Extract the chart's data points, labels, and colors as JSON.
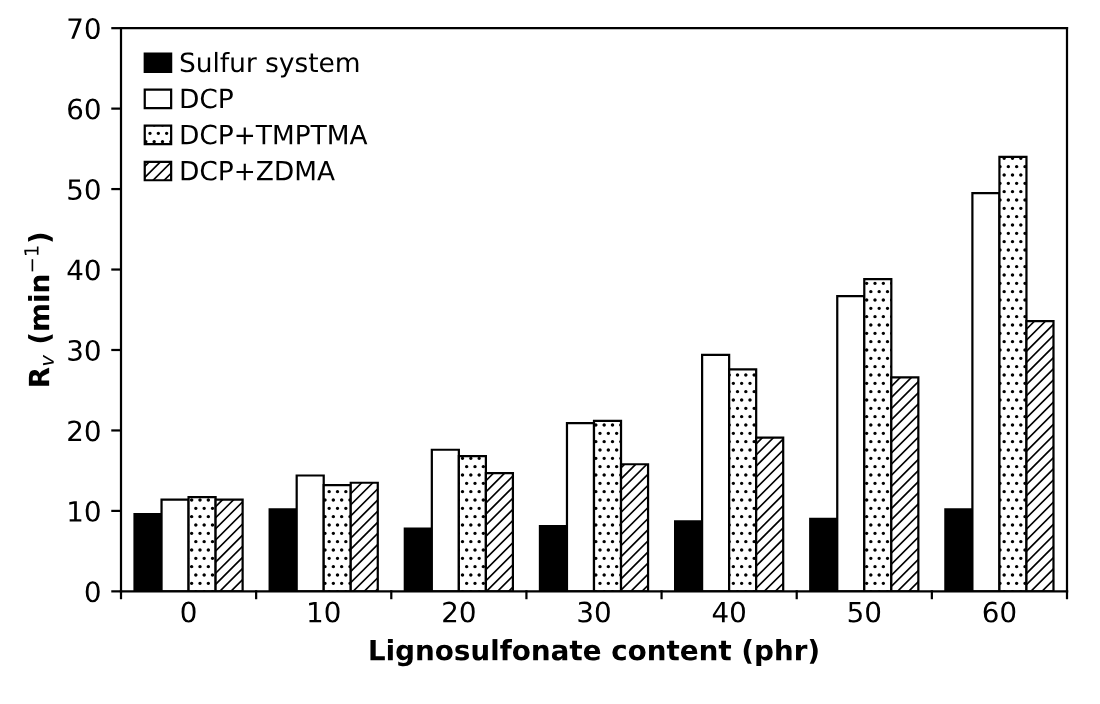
{
  "chart_data": {
    "type": "bar",
    "xlabel": "Lignosulfonate content (phr)",
    "ylabel": "R$_{v}$ (min$^{−1}$)",
    "categories": [
      "0",
      "10",
      "20",
      "30",
      "40",
      "50",
      "60"
    ],
    "series": [
      {
        "name": "Sulfur system",
        "color": "#000000",
        "values": [
          9.6,
          10.2,
          7.8,
          8.1,
          8.7,
          9.0,
          10.2
        ]
      },
      {
        "name": "DCP",
        "color": "#ffffff",
        "values": [
          11.4,
          14.4,
          17.6,
          20.9,
          29.4,
          36.7,
          49.5
        ]
      },
      {
        "name": "DCP+TMPTMA",
        "color": "#000000",
        "values": [
          11.7,
          13.2,
          16.8,
          21.2,
          27.6,
          38.8,
          54.0
        ]
      },
      {
        "name": "DCP+ZDMA",
        "color": "#000000",
        "values": [
          11.4,
          13.5,
          14.7,
          15.8,
          19.1,
          26.6,
          33.6
        ]
      }
    ],
    "ylim": [
      0,
      70
    ],
    "yticks": [
      0,
      10,
      20,
      30,
      40,
      50,
      60,
      70
    ],
    "grid": false,
    "legend": "top left"
  }
}
